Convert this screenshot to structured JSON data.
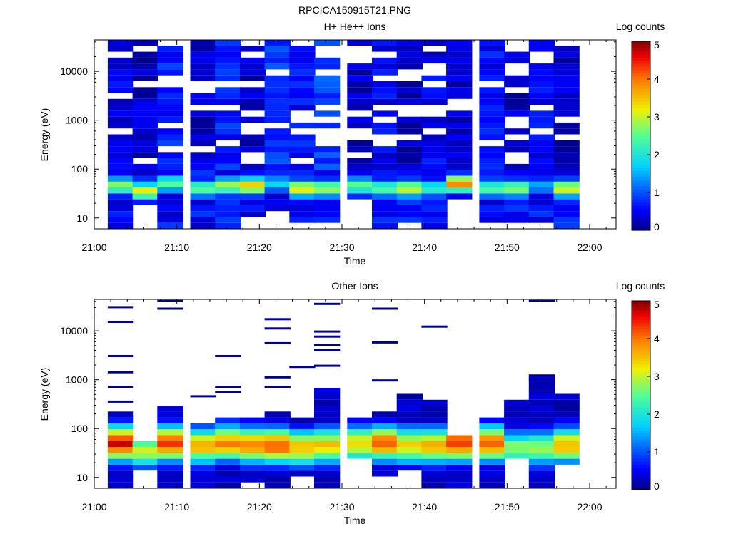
{
  "figure_title": "RPCICA150915T21.PNG",
  "chart_data": [
    {
      "type": "heatmap",
      "title": "H+ He++ Ions",
      "xlabel": "Time",
      "ylabel": "Energy (eV)",
      "y_scale": "log",
      "ylim": [
        6,
        44000
      ],
      "x_ticks": [
        "21:00",
        "21:10",
        "21:20",
        "21:30",
        "21:40",
        "21:50",
        "22:00"
      ],
      "y_ticks": [
        "10",
        "100",
        "1000",
        "10000"
      ],
      "colorbar": {
        "label": "Log counts",
        "range": [
          0,
          5
        ],
        "ticks": [
          "0",
          "1",
          "2",
          "3",
          "4",
          "5"
        ]
      },
      "time_columns": [
        "21:03",
        "21:06",
        "21:09",
        "21:13",
        "21:16",
        "21:19",
        "21:22",
        "21:25",
        "21:28",
        "21:32",
        "21:35",
        "21:38",
        "21:41",
        "21:44",
        "21:48",
        "21:51",
        "21:54",
        "21:57"
      ],
      "max_energy_ev": [
        40000,
        40000,
        40000,
        40000,
        40000,
        40000,
        40000,
        40000,
        40000,
        40000,
        40000,
        40000,
        40000,
        40000,
        40000,
        40000,
        40000,
        30000
      ],
      "min_energy_ev": [
        6,
        20,
        6,
        6,
        6,
        12,
        15,
        9,
        9,
        25,
        6,
        9,
        6,
        25,
        9,
        9,
        9,
        6
      ],
      "peak_energy_ev": [
        45,
        35,
        50,
        40,
        45,
        45,
        50,
        40,
        40,
        45,
        40,
        40,
        40,
        50,
        40,
        40,
        45,
        40
      ],
      "peak_log_counts": [
        2.8,
        3.2,
        2.5,
        2.6,
        2.9,
        3.5,
        1.8,
        3.3,
        2.9,
        2.6,
        2.5,
        3.1,
        2.2,
        3.9,
        2.5,
        2.8,
        1.5,
        3.2
      ],
      "high_energy_log_counts": [
        0.5,
        0.3,
        0.7,
        0.3,
        0.7,
        0.3,
        0.8,
        0.6,
        0.9,
        0.3,
        0.5,
        0.3,
        0.5,
        0.3,
        0.6,
        0.3,
        0.5,
        0.3
      ]
    },
    {
      "type": "heatmap",
      "title": "Other Ions",
      "xlabel": "Time",
      "ylabel": "Energy (eV)",
      "y_scale": "log",
      "ylim": [
        6,
        44000
      ],
      "x_ticks": [
        "21:00",
        "21:10",
        "21:20",
        "21:30",
        "21:40",
        "21:50",
        "22:00"
      ],
      "y_ticks": [
        "10",
        "100",
        "1000",
        "10000"
      ],
      "colorbar": {
        "label": "Log counts",
        "range": [
          0,
          5
        ],
        "ticks": [
          "0",
          "1",
          "2",
          "3",
          "4",
          "5"
        ]
      },
      "time_columns": [
        "21:03",
        "21:06",
        "21:09",
        "21:13",
        "21:16",
        "21:19",
        "21:22",
        "21:25",
        "21:28",
        "21:32",
        "21:35",
        "21:38",
        "21:41",
        "21:44",
        "21:48",
        "21:51",
        "21:54",
        "21:57"
      ],
      "band_top_ev": [
        230,
        60,
        280,
        130,
        170,
        180,
        200,
        180,
        700,
        170,
        250,
        450,
        400,
        70,
        180,
        400,
        1200,
        500
      ],
      "band_bottom_ev": [
        6,
        15,
        6,
        6,
        6,
        9,
        6,
        12,
        6,
        25,
        12,
        15,
        6,
        6,
        6,
        25,
        6,
        20
      ],
      "peak_energy_ev": [
        50,
        35,
        50,
        45,
        50,
        45,
        45,
        40,
        45,
        50,
        50,
        45,
        45,
        50,
        50,
        40,
        40,
        45
      ],
      "peak_log_counts": [
        4.6,
        3.0,
        4.4,
        3.6,
        3.9,
        4.0,
        4.2,
        3.6,
        3.5,
        3.4,
        4.1,
        3.4,
        3.6,
        4.4,
        4.2,
        2.7,
        2.8,
        3.6
      ],
      "sparse_high_energy_ev": [
        [
          30000,
          15000,
          3000,
          1400,
          700,
          350
        ],
        [],
        [
          40000,
          28000
        ],
        [
          450
        ],
        [
          3000,
          700,
          550
        ],
        [],
        [
          17000,
          11000,
          5500,
          1100,
          700
        ],
        [
          1800
        ],
        [
          35000,
          9500,
          7500,
          5000,
          4000,
          1900
        ],
        [],
        [
          28000,
          5700,
          950
        ],
        [],
        [
          12000
        ],
        [],
        [],
        [],
        [
          40000,
          1200,
          1000
        ],
        []
      ]
    }
  ]
}
